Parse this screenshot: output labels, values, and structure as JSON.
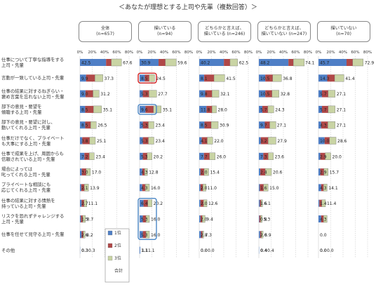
{
  "title": "＜あなたが理想とする上司や先輩（複数回答）＞",
  "chart_data": {
    "type": "bar",
    "stacked": true,
    "orientation": "horizontal",
    "xlim": [
      0,
      80
    ],
    "ticks": [
      "0%",
      "20%",
      "40%",
      "60%",
      "80%"
    ],
    "tick_values": [
      0,
      20,
      40,
      60,
      80
    ],
    "legend": [
      "1位",
      "2位",
      "3位",
      "合計"
    ],
    "colors": {
      "rank1": "#4f7fc6",
      "rank2": "#b04848",
      "rank3": "#c9d4a4",
      "highlight_red": "#d22020",
      "highlight_blue": "#4a86c5"
    },
    "categories": [
      [
        "仕事について丁寧な指導をする",
        "上司・先輩"
      ],
      [
        "言動が一致している上司・先輩"
      ],
      [
        "仕事の結果に対するねぎらい・",
        "褒め言葉を忘れない上司・先輩"
      ],
      [
        "部下の意見・要望を",
        "傾聴する上司・先輩"
      ],
      [
        "部下の意見・要望に対し、",
        "動いてくれる上司・先輩"
      ],
      [
        "仕事だけでなく、プライベート",
        "も大事にする上司・先輩"
      ],
      [
        "仕事で成果を上げ、周囲からも",
        "信頼されている上司・先輩"
      ],
      [
        "場合によっては",
        "叱ってくれる上司・先輩"
      ],
      [
        "プライベートな相談にも",
        "応じてくれる上司・先輩"
      ],
      [
        "仕事の結果に対する情熱を",
        "持っている上司・先輩"
      ],
      [
        "リスクを恐れずチャレンジする",
        "上司・先輩"
      ],
      [
        "仕事を任せて見守る上司・先輩"
      ],
      [
        "その他"
      ]
    ],
    "panels": [
      {
        "name": [
          "全体",
          "(n=657)"
        ],
        "rank1": [
          42.5,
          9.9,
          9.0,
          8.5,
          8.5,
          3.8,
          7.2,
          3.0,
          2.1,
          2.7,
          1.5,
          2.6,
          0.3
        ],
        "rank2": [
          8.5,
          14.5,
          12.2,
          13.5,
          9.0,
          12.0,
          8.0,
          7.0,
          5.0,
          4.0,
          3.0,
          2.8,
          0.0
        ],
        "rank3": [
          16.6,
          12.9,
          10.0,
          13.1,
          9.0,
          9.3,
          8.0,
          7.0,
          6.8,
          4.4,
          4.2,
          2.8,
          0.0
        ],
        "total": [
          67.6,
          37.3,
          31.2,
          35.1,
          26.5,
          25.1,
          23.4,
          17.0,
          13.9,
          11.1,
          8.7,
          8.2,
          0.3
        ],
        "labels1": [
          "42.5",
          "9.9",
          "9.0",
          "8.5",
          "8.5",
          "3.8",
          "7.2",
          "3.0",
          "2.1",
          "2.7",
          "1.5",
          "2.6",
          "0.3"
        ],
        "labels_total": [
          "67.6",
          "37.3",
          "31.2",
          "35.1",
          "26.5",
          "25.1",
          "23.4",
          "17.0",
          "13.9",
          "11.1",
          "8.7",
          "8.2",
          "0.3"
        ],
        "labels_extra": [
          "",
          "",
          "",
          "",
          "",
          "",
          "",
          "",
          "",
          "",
          "",
          "",
          "0.3"
        ]
      },
      {
        "name": [
          "描いている",
          "(n=94)"
        ],
        "rank1": [
          30.9,
          8.5,
          5.3,
          9.6,
          5.3,
          5.3,
          5.3,
          4.3,
          4.3,
          6.4,
          5.3,
          5.3,
          1.1
        ],
        "rank2": [
          11.0,
          7.0,
          10.0,
          13.0,
          9.0,
          9.0,
          7.0,
          4.0,
          5.0,
          7.0,
          5.0,
          5.0,
          0.0
        ],
        "rank3": [
          17.7,
          9.0,
          12.4,
          12.5,
          9.1,
          9.1,
          7.9,
          4.5,
          6.7,
          6.8,
          5.7,
          5.7,
          0.0
        ],
        "total": [
          59.6,
          24.5,
          27.7,
          35.1,
          23.4,
          23.4,
          20.2,
          12.8,
          16.0,
          20.2,
          16.0,
          16.0,
          1.1
        ],
        "labels1": [
          "30.9",
          "8.5",
          "5.3",
          "9.6",
          "5.3",
          "5.3",
          "5.3",
          "4.3",
          "4.3",
          "6.4",
          "5.3",
          "5.3",
          "1.1"
        ],
        "labels_total": [
          "59.6",
          "24.5",
          "27.7",
          "35.1",
          "23.4",
          "23.4",
          "20.2",
          "12.8",
          "16.0",
          "20.2",
          "16.0",
          "16.0",
          "1.1"
        ],
        "labels_extra": [
          "",
          "",
          "",
          "",
          "",
          "",
          "",
          "",
          "",
          "",
          "",
          "",
          "1.1"
        ]
      },
      {
        "name": [
          "どちらかと言えば、",
          "描いている (n=246)"
        ],
        "rank1": [
          40.2,
          8.1,
          9.8,
          11.8,
          8.5,
          4.1,
          7.7,
          2.0,
          2.0,
          2.0,
          2.0,
          2.8,
          0.0
        ],
        "rank2": [
          10.0,
          16.0,
          11.0,
          9.0,
          11.0,
          9.0,
          9.0,
          6.0,
          4.0,
          5.0,
          3.0,
          2.5,
          0.0
        ],
        "rank3": [
          12.3,
          17.4,
          11.3,
          7.2,
          11.4,
          8.9,
          9.3,
          7.4,
          5.0,
          5.6,
          4.4,
          2.0,
          0.0
        ],
        "total": [
          62.5,
          41.5,
          32.1,
          28.0,
          30.9,
          22.0,
          26.0,
          15.4,
          11.0,
          12.6,
          9.4,
          7.3,
          0.0
        ],
        "labels1": [
          "40.2",
          "8.1",
          "9.8",
          "11.8",
          "8.5",
          "4.1",
          "7.7",
          "2.0",
          "2.0",
          "2.0",
          "2.0",
          "2.8",
          "0.0"
        ],
        "labels_total": [
          "62.5",
          "41.5",
          "32.1",
          "28.0",
          "30.9",
          "22.0",
          "26.0",
          "15.4",
          "11.0",
          "12.6",
          "9.4",
          "7.3",
          "0.0"
        ],
        "labels_extra": [
          "",
          "",
          "",
          "",
          "",
          "",
          "",
          "",
          "",
          "",
          "",
          "",
          "0.0"
        ]
      },
      {
        "name": [
          "どちらかと言えば、",
          "描いていない (n=247)"
        ],
        "rank1": [
          48.2,
          10.5,
          10.5,
          5.7,
          9.7,
          3.2,
          7.3,
          2.4,
          1.6,
          1.6,
          0.8,
          2.0,
          0.4
        ],
        "rank2": [
          8.0,
          12.0,
          11.0,
          9.0,
          8.0,
          12.0,
          8.0,
          8.0,
          6.0,
          2.0,
          2.0,
          2.0,
          0.0
        ],
        "rank3": [
          17.9,
          14.3,
          11.3,
          9.6,
          10.1,
          12.7,
          8.3,
          10.2,
          7.4,
          2.5,
          2.5,
          2.9,
          0.0
        ],
        "total": [
          74.1,
          36.8,
          32.8,
          24.3,
          27.1,
          27.9,
          23.6,
          20.6,
          15.0,
          6.1,
          5.3,
          6.9,
          0.4
        ],
        "labels1": [
          "48.2",
          "10.5",
          "10.5",
          "5.7",
          "9.7",
          "3.2",
          "7.3",
          "2.4",
          "1.6",
          "1.6",
          "0.8",
          "2.0",
          "0.4"
        ],
        "labels_total": [
          "74.1",
          "36.8",
          "32.8",
          "24.3",
          "27.1",
          "27.9",
          "23.6",
          "20.6",
          "15.0",
          "6.1",
          "5.3",
          "6.9",
          "0.4"
        ],
        "labels_extra": [
          "",
          "",
          "",
          "",
          "",
          "",
          "",
          "",
          "",
          "",
          "",
          "",
          "0.4"
        ]
      },
      {
        "name": [
          "描いていない",
          "(n=70)"
        ],
        "rank1": [
          45.7,
          14.3,
          5.7,
          5.7,
          4.3,
          10.0,
          2.9,
          2.9,
          4.3,
          1.4,
          4.3,
          0.0,
          0.0
        ],
        "rank2": [
          10.0,
          12.0,
          10.0,
          10.0,
          11.0,
          8.0,
          8.0,
          6.0,
          4.0,
          4.0,
          4.0,
          0.0,
          0.0
        ],
        "rank3": [
          17.2,
          15.1,
          11.4,
          11.4,
          11.8,
          10.6,
          9.1,
          6.8,
          5.8,
          6.0,
          5.7,
          0.0,
          0.0
        ],
        "total": [
          72.9,
          41.4,
          27.1,
          27.1,
          27.1,
          28.6,
          20.0,
          15.7,
          14.1,
          11.4,
          14.0,
          0.0,
          0.0
        ],
        "labels1": [
          "45.7",
          "14.3",
          "5.7",
          "5.7",
          "4.3",
          "10.0",
          "2.9",
          "2.9",
          "4.3",
          "1.4",
          "4.3",
          "0.0",
          "0.0"
        ],
        "labels_total": [
          "72.9",
          "41.4",
          "27.1",
          "27.1",
          "27.1",
          "28.6",
          "20.0",
          "15.7",
          "14.1",
          "11.4",
          "",
          "",
          "0.0"
        ],
        "labels_extra": [
          "",
          "",
          "",
          "",
          "",
          "",
          "",
          "",
          "",
          "",
          "",
          "",
          "0.0"
        ]
      }
    ],
    "highlights": [
      {
        "panel": 1,
        "rows": [
          1,
          1
        ],
        "color": "red"
      },
      {
        "panel": 1,
        "rows": [
          3,
          3
        ],
        "color": "blue"
      },
      {
        "panel": 1,
        "rows": [
          9,
          11
        ],
        "color": "blue"
      }
    ]
  }
}
